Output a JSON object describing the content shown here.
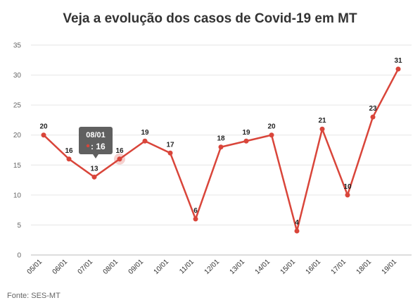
{
  "chart_data": {
    "type": "line",
    "title": "Veja a evolução dos casos de Covid-19 em MT",
    "categories": [
      "05/01",
      "06/01",
      "07/01",
      "08/01",
      "09/01",
      "10/01",
      "11/01",
      "12/01",
      "13/01",
      "14/01",
      "15/01",
      "16/01",
      "17/01",
      "18/01",
      "19/01"
    ],
    "series": [
      {
        "values": [
          20,
          16,
          13,
          16,
          19,
          17,
          6,
          18,
          19,
          20,
          4,
          21,
          10,
          23,
          31
        ]
      }
    ],
    "ylim": [
      0,
      35
    ],
    "yticks": [
      0,
      5,
      10,
      15,
      20,
      25,
      30,
      35
    ],
    "grid": true,
    "line_color": "#d9453a",
    "tooltip": {
      "label": "08/01",
      "value": ": 16"
    }
  },
  "source": "Fonte: SES-MT"
}
